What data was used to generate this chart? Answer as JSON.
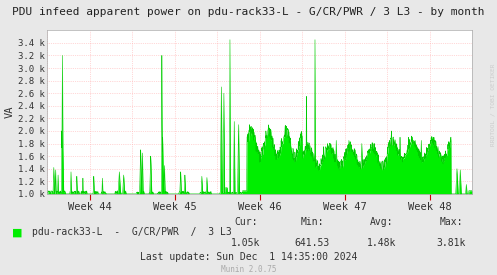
{
  "title": "PDU infeed apparent power on pdu-rack33-L - G/CR/PWR / 3 L3 - by month",
  "ylabel": "VA",
  "bg_color": "#e8e8e8",
  "plot_bg_color": "#ffffff",
  "grid_color": "#ffaaaa",
  "line_color": "#00cc00",
  "fill_color": "#00ee00",
  "ylim_min": 1000,
  "ylim_max": 3600,
  "yticks": [
    1000,
    1200,
    1400,
    1600,
    1800,
    2000,
    2200,
    2400,
    2600,
    2800,
    3000,
    3200,
    3400
  ],
  "ytick_labels": [
    "1.0 k",
    "1.2 k",
    "1.4 k",
    "1.6 k",
    "1.8 k",
    "2.0 k",
    "2.2 k",
    "2.4 k",
    "2.6 k",
    "2.8 k",
    "3.0 k",
    "3.2 k",
    "3.4 k"
  ],
  "xtick_labels": [
    "Week 44",
    "Week 45",
    "Week 46",
    "Week 47",
    "Week 48"
  ],
  "legend_label": "pdu-rack33-L  -  G/CR/PWR  /  3 L3",
  "cur": "1.05k",
  "min_val": "641.53",
  "avg": "1.48k",
  "max_val": "3.81k",
  "last_update": "Last update: Sun Dec  1 14:35:00 2024",
  "munin_version": "Munin 2.0.75",
  "watermark": "RRDTOOL / TOBI OETIKER",
  "title_color": "#222222",
  "text_color": "#333333",
  "light_text_color": "#aaaaaa",
  "base": 1000,
  "n_weeks": 5,
  "n_points": 1680
}
